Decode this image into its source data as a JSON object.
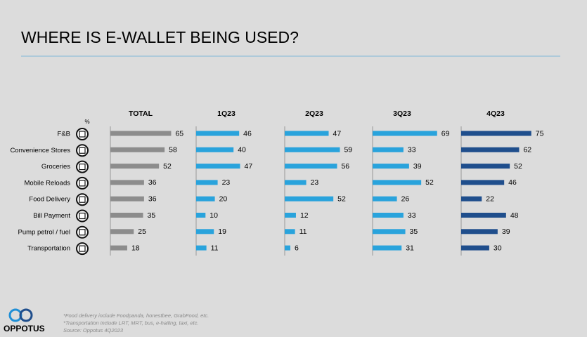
{
  "chart_data": {
    "type": "bar",
    "orientation": "horizontal",
    "title": "WHERE IS E-WALLET BEING USED?",
    "unit_label": "%",
    "categories": [
      "F&B",
      "Convenience Stores",
      "Groceries",
      "Mobile Reloads",
      "Food Delivery",
      "Bill Payment",
      "Pump petrol / fuel",
      "Transportation"
    ],
    "series": [
      {
        "name": "TOTAL",
        "color": "#8c8c8c",
        "values": [
          65,
          58,
          52,
          36,
          36,
          35,
          25,
          18
        ]
      },
      {
        "name": "1Q23",
        "color": "#29a3dc",
        "values": [
          46,
          40,
          47,
          23,
          20,
          10,
          19,
          11
        ]
      },
      {
        "name": "2Q23",
        "color": "#29a3dc",
        "values": [
          47,
          59,
          56,
          23,
          52,
          12,
          11,
          6
        ]
      },
      {
        "name": "3Q23",
        "color": "#29a3dc",
        "values": [
          69,
          33,
          39,
          52,
          26,
          33,
          35,
          31
        ]
      },
      {
        "name": "4Q23",
        "color": "#1f4e8c",
        "values": [
          75,
          62,
          52,
          46,
          22,
          48,
          39,
          30
        ]
      }
    ],
    "notes": [
      "*Food delivery include Foodpanda, honestbee, GrabFood, etc.",
      "*Transportation include LRT, MRT, bus, e-hailing, taxi, etc.",
      "Source: Oppotus 4Q2023"
    ],
    "brand": "OPPOTUS"
  }
}
